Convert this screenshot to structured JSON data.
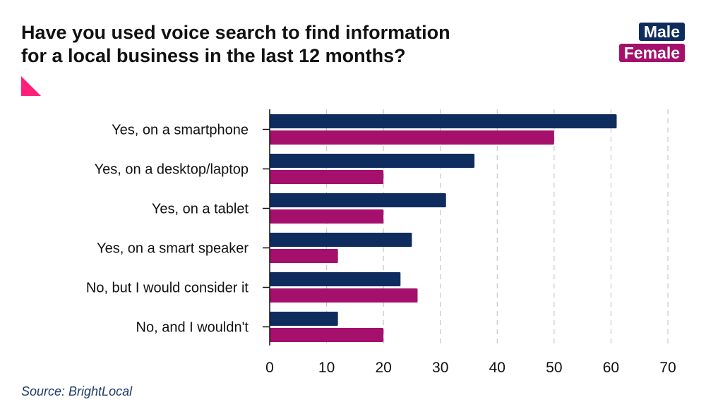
{
  "title_lines": [
    "Have you used voice search to find information",
    "for a local business in the last 12 months?"
  ],
  "source": "Source: BrightLocal",
  "colors": {
    "male": "#0f2c5e",
    "female": "#a4106b",
    "accent": "#ff1f7a",
    "grid": "#c8c8c8",
    "axis": "#111111"
  },
  "chart_data": {
    "type": "bar",
    "orientation": "horizontal",
    "title": "Have you used voice search to find information for a local business in the last 12 months?",
    "categories": [
      "Yes, on a smartphone",
      "Yes, on a desktop/laptop",
      "Yes, on a tablet",
      "Yes, on a smart speaker",
      "No, but I would consider it",
      "No, and I wouldn't"
    ],
    "series": [
      {
        "name": "Male",
        "values": [
          61,
          36,
          31,
          25,
          23,
          12
        ]
      },
      {
        "name": "Female",
        "values": [
          50,
          20,
          20,
          12,
          26,
          20
        ]
      }
    ],
    "xlim": [
      0,
      70
    ],
    "xticks": [
      0,
      10,
      20,
      30,
      40,
      50,
      60,
      70
    ],
    "grid": true,
    "legend_position": "top-right"
  }
}
